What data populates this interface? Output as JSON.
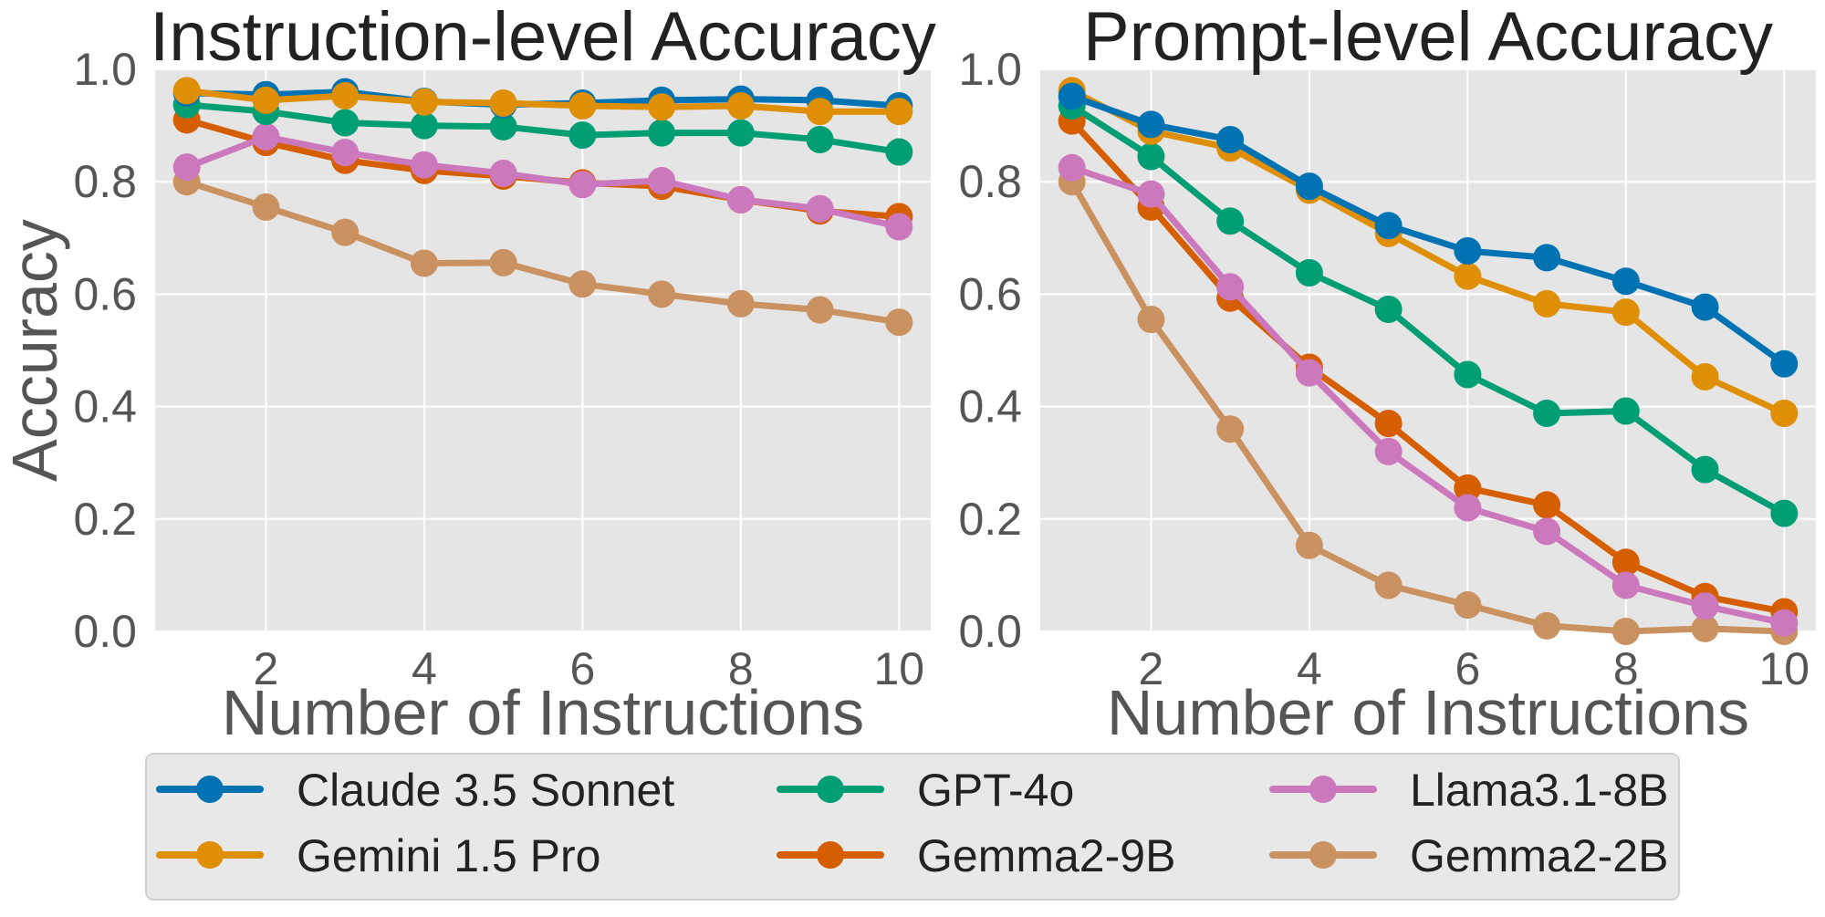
{
  "chart_data": {
    "type": "line",
    "legend": {
      "position": "bottom",
      "entries": [
        {
          "name": "Claude 3.5 Sonnet",
          "color": "#0173b2"
        },
        {
          "name": "GPT-4o",
          "color": "#029e73"
        },
        {
          "name": "Llama3.1-8B",
          "color": "#cc78bc"
        },
        {
          "name": "Gemini 1.5 Pro",
          "color": "#de8f05"
        },
        {
          "name": "Gemma2-9B",
          "color": "#d55e00"
        },
        {
          "name": "Gemma2-2B",
          "color": "#ca9161"
        }
      ]
    },
    "panels": [
      {
        "title": "Instruction-level Accuracy",
        "xlabel": "Number of Instructions",
        "ylabel": "Accuracy",
        "xlim": [
          0.6,
          10.4
        ],
        "ylim": [
          0.0,
          1.0
        ],
        "xticks": [
          2,
          4,
          6,
          8,
          10
        ],
        "yticks": [
          "0.0",
          "0.2",
          "0.4",
          "0.6",
          "0.8",
          "1.0"
        ],
        "grid": true,
        "x": [
          1,
          2,
          3,
          4,
          5,
          6,
          7,
          8,
          9,
          10
        ],
        "series": [
          {
            "name": "Gemma2-2B",
            "color": "#ca9161",
            "values": [
              0.8,
              0.755,
              0.71,
              0.655,
              0.656,
              0.618,
              0.6,
              0.583,
              0.572,
              0.55
            ]
          },
          {
            "name": "Gemma2-9B",
            "color": "#d55e00",
            "values": [
              0.91,
              0.87,
              0.838,
              0.82,
              0.81,
              0.798,
              0.792,
              0.768,
              0.748,
              0.738
            ]
          },
          {
            "name": "Llama3.1-8B",
            "color": "#cc78bc",
            "values": [
              0.826,
              0.88,
              0.852,
              0.83,
              0.815,
              0.795,
              0.802,
              0.768,
              0.752,
              0.72
            ]
          },
          {
            "name": "GPT-4o",
            "color": "#029e73",
            "values": [
              0.937,
              0.925,
              0.905,
              0.9,
              0.898,
              0.883,
              0.887,
              0.887,
              0.875,
              0.853
            ]
          },
          {
            "name": "Claude 3.5 Sonnet",
            "color": "#0173b2",
            "values": [
              0.958,
              0.955,
              0.96,
              0.943,
              0.937,
              0.94,
              0.945,
              0.947,
              0.945,
              0.935
            ]
          },
          {
            "name": "Gemini 1.5 Pro",
            "color": "#de8f05",
            "values": [
              0.962,
              0.945,
              0.953,
              0.942,
              0.94,
              0.935,
              0.933,
              0.935,
              0.925,
              0.925
            ]
          }
        ]
      },
      {
        "title": "Prompt-level Accuracy",
        "xlabel": "Number of Instructions",
        "ylabel": "",
        "xlim": [
          0.6,
          10.4
        ],
        "ylim": [
          0.0,
          1.0
        ],
        "xticks": [
          2,
          4,
          6,
          8,
          10
        ],
        "yticks": [
          "0.0",
          "0.2",
          "0.4",
          "0.6",
          "0.8",
          "1.0"
        ],
        "grid": true,
        "x": [
          1,
          2,
          3,
          4,
          5,
          6,
          7,
          8,
          9,
          10
        ],
        "series": [
          {
            "name": "Gemma2-2B",
            "color": "#ca9161",
            "values": [
              0.8,
              0.555,
              0.36,
              0.153,
              0.082,
              0.047,
              0.01,
              0.0,
              0.005,
              0.0
            ]
          },
          {
            "name": "Gemma2-9B",
            "color": "#d55e00",
            "values": [
              0.908,
              0.755,
              0.593,
              0.47,
              0.37,
              0.255,
              0.225,
              0.123,
              0.062,
              0.035
            ]
          },
          {
            "name": "Llama3.1-8B",
            "color": "#cc78bc",
            "values": [
              0.825,
              0.778,
              0.613,
              0.46,
              0.32,
              0.22,
              0.178,
              0.082,
              0.045,
              0.015
            ]
          },
          {
            "name": "GPT-4o",
            "color": "#029e73",
            "values": [
              0.935,
              0.845,
              0.73,
              0.638,
              0.573,
              0.457,
              0.388,
              0.392,
              0.288,
              0.21
            ]
          },
          {
            "name": "Gemini 1.5 Pro",
            "color": "#de8f05",
            "values": [
              0.962,
              0.89,
              0.86,
              0.785,
              0.708,
              0.632,
              0.583,
              0.568,
              0.453,
              0.388
            ]
          },
          {
            "name": "Claude 3.5 Sonnet",
            "color": "#0173b2",
            "values": [
              0.952,
              0.902,
              0.875,
              0.792,
              0.722,
              0.677,
              0.665,
              0.623,
              0.577,
              0.476
            ]
          }
        ]
      }
    ]
  }
}
